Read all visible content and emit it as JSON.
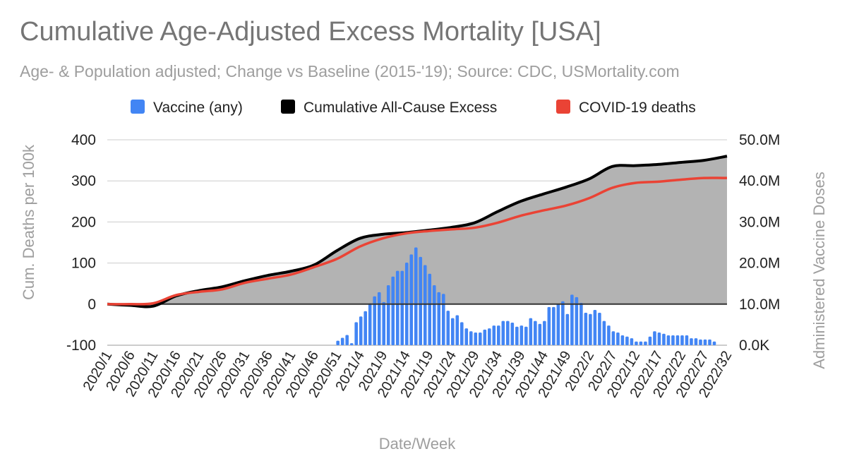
{
  "chart_data": {
    "type": "bar+line",
    "title": "Cumulative Age-Adjusted Excess Mortality [USA]",
    "subtitle": "Age- & Population adjusted; Change vs Baseline (2015-'19); Source: CDC, USMortality.com",
    "xlabel": "Date/Week",
    "ylabel_left": "Cum. Deaths per 100k",
    "ylabel_right": "Administered Vaccine Doses",
    "ylim_left": [
      -100,
      400
    ],
    "ylim_right": [
      0,
      50000000
    ],
    "left_ticks": [
      "400",
      "300",
      "200",
      "100",
      "0",
      "-100"
    ],
    "left_tick_values": [
      400,
      300,
      200,
      100,
      0,
      -100
    ],
    "right_ticks": [
      "50.0M",
      "40.0M",
      "30.0M",
      "20.0M",
      "10.0M",
      "0.0K"
    ],
    "total_weeks": 136,
    "tick_every_weeks": 5,
    "categories": [
      "2020/1",
      "2020/6",
      "2020/11",
      "2020/16",
      "2020/21",
      "2020/26",
      "2020/31",
      "2020/36",
      "2020/41",
      "2020/46",
      "2020/51",
      "2021/4",
      "2021/9",
      "2021/14",
      "2021/19",
      "2021/24",
      "2021/29",
      "2021/34",
      "2021/39",
      "2021/44",
      "2021/49",
      "2022/2",
      "2022/7",
      "2022/12",
      "2022/17",
      "2022/22",
      "2022/27",
      "2022/32"
    ],
    "legend": [
      {
        "name": "Vaccine (any)",
        "color": "#4285f4"
      },
      {
        "name": "Cumulative All-Cause Excess",
        "color": "#000000"
      },
      {
        "name": "COVID-19 deaths",
        "color": "#ea4335"
      }
    ],
    "legend_position": "top",
    "series": [
      {
        "name": "Cumulative All-Cause Excess",
        "type": "area-line",
        "axis": "left",
        "values": [
          0,
          -3,
          -5,
          20,
          33,
          42,
          57,
          70,
          80,
          95,
          130,
          160,
          170,
          174,
          180,
          187,
          198,
          225,
          250,
          268,
          285,
          305,
          335,
          337,
          340,
          345,
          350,
          360
        ]
      },
      {
        "name": "COVID-19 deaths",
        "type": "line",
        "axis": "left",
        "values": [
          0,
          0,
          2,
          22,
          30,
          36,
          52,
          62,
          72,
          90,
          110,
          140,
          160,
          172,
          178,
          182,
          186,
          198,
          215,
          228,
          240,
          258,
          283,
          295,
          298,
          303,
          307,
          307
        ]
      }
    ],
    "vaccine": {
      "name": "Vaccine (any)",
      "axis": "right",
      "unit": "millions of doses",
      "start_week_index": 50,
      "values": [
        1.1,
        1.8,
        2.5,
        0.5,
        5.6,
        7.0,
        8.3,
        10.2,
        11.9,
        12.9,
        10.5,
        14.6,
        16.7,
        18.1,
        18.1,
        20.1,
        22.1,
        23.8,
        21.5,
        19.5,
        17.4,
        14.6,
        12.9,
        12.5,
        8.4,
        6.6,
        7.3,
        5.6,
        4.1,
        3.4,
        3.1,
        3.1,
        3.8,
        4.1,
        4.8,
        4.8,
        5.9,
        5.9,
        5.5,
        4.5,
        4.8,
        4.5,
        6.6,
        5.9,
        5.2,
        5.9,
        9.3,
        9.3,
        10.0,
        10.7,
        7.6,
        12.3,
        11.7,
        10.3,
        7.9,
        7.6,
        8.6,
        7.9,
        5.9,
        4.8,
        3.4,
        3.1,
        2.4,
        2.1,
        1.7,
        0.9,
        0.9,
        0.9,
        2.1,
        3.4,
        3.1,
        2.8,
        2.4,
        2.4,
        2.4,
        2.4,
        2.4,
        1.7,
        1.7,
        1.4,
        1.4,
        1.4,
        0.9
      ]
    }
  }
}
